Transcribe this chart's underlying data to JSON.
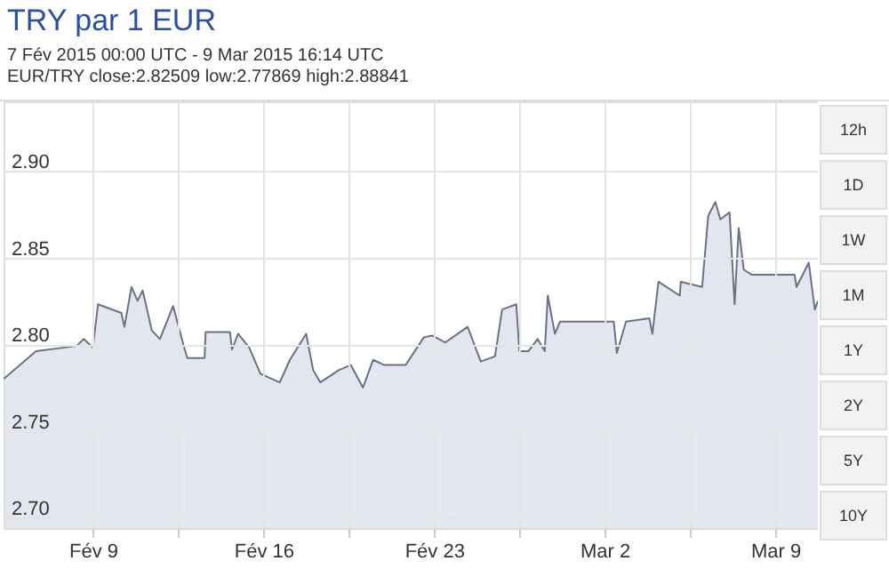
{
  "chart_data": {
    "type": "area",
    "title": "TRY par 1 EUR",
    "subtitle": "7 Fév 2015 00:00 UTC - 9 Mar 2015 16:14 UTC",
    "annotations": [
      "EUR/TRY close:2.82509 low:2.77869 high:2.88841",
      "12h",
      "1D",
      "1W",
      "1M",
      "1Y",
      "2Y",
      "5Y",
      "10Y"
    ],
    "x": [
      "2015-02-05T08:00",
      "2015-02-06T16:00",
      "2015-02-08T08:00",
      "2015-02-08T15:00",
      "2015-02-09T00:00",
      "2015-02-09T05:00",
      "2015-02-10T04:00",
      "2015-02-10T07:00",
      "2015-02-10T14:00",
      "2015-02-10T20:00",
      "2015-02-11T01:00",
      "2015-02-11T10:00",
      "2015-02-11T18:00",
      "2015-02-12T07:00",
      "2015-02-12T17:00",
      "2015-02-12T21:00",
      "2015-02-13T14:00",
      "2015-02-13T15:00",
      "2015-02-14T15:00",
      "2015-02-14T17:00",
      "2015-02-14T23:00",
      "2015-02-15T10:00",
      "2015-02-15T21:00",
      "2015-02-16T16:00",
      "2015-02-17T02:00",
      "2015-02-17T18:00",
      "2015-02-18T01:00",
      "2015-02-18T08:00",
      "2015-02-19T02:00",
      "2015-02-19T14:00",
      "2015-02-20T02:00",
      "2015-02-20T12:00",
      "2015-02-20T23:00",
      "2015-02-21T20:00",
      "2015-02-22T14:00",
      "2015-02-22T22:00",
      "2015-02-23T11:00",
      "2015-02-24T09:00",
      "2015-02-24T22:00",
      "2015-02-25T12:00",
      "2015-02-25T19:00",
      "2015-02-26T09:00",
      "2015-02-26T12:00",
      "2015-02-26T21:00",
      "2015-02-27T06:00",
      "2015-02-27T13:00",
      "2015-02-27T16:00",
      "2015-02-27T23:00",
      "2015-02-28T04:00",
      "2015-03-02T09:00",
      "2015-03-02T12:00",
      "2015-03-02T21:00",
      "2015-03-03T20:00",
      "2015-03-03T23:00",
      "2015-03-04T05:00",
      "2015-03-05T02:00",
      "2015-03-05T03:00",
      "2015-03-06T00:00",
      "2015-03-06T06:00",
      "2015-03-06T13:00",
      "2015-03-06T18:00",
      "2015-03-07T03:00",
      "2015-03-07T08:00",
      "2015-03-07T12:00",
      "2015-03-07T17:00",
      "2015-03-08T01:00",
      "2015-03-09T19:00",
      "2015-03-09T21:00",
      "2015-03-10T09:00",
      "2015-03-10T15:00",
      "2015-03-10T18:00"
    ],
    "series": [
      {
        "color": "#6b7186",
        "values": [
          2.78,
          2.796,
          2.799,
          2.803,
          2.798,
          2.823,
          2.818,
          2.81,
          2.833,
          2.825,
          2.831,
          2.808,
          2.803,
          2.822,
          2.8,
          2.792,
          2.792,
          2.807,
          2.807,
          2.797,
          2.806,
          2.798,
          2.783,
          2.778,
          2.791,
          2.806,
          2.785,
          2.778,
          2.785,
          2.788,
          2.775,
          2.791,
          2.788,
          2.788,
          2.804,
          2.805,
          2.801,
          2.81,
          2.79,
          2.793,
          2.82,
          2.823,
          2.796,
          2.796,
          2.803,
          2.796,
          2.828,
          2.806,
          2.813,
          2.813,
          2.795,
          2.813,
          2.815,
          2.806,
          2.836,
          2.828,
          2.836,
          2.833,
          2.874,
          2.882,
          2.872,
          2.876,
          2.823,
          2.867,
          2.843,
          2.84,
          2.84,
          2.833,
          2.847,
          2.82,
          2.825
        ]
      }
    ],
    "xlim": [
      "2015-02-05T08:00",
      "2015-03-10T18:00"
    ],
    "xticks": [
      {
        "value": "2015-02-09",
        "label": "Fév 9"
      },
      {
        "value": "2015-02-12T12:00",
        "label": null
      },
      {
        "value": "2015-02-16",
        "label": "Fév 16"
      },
      {
        "value": "2015-02-19T12:00",
        "label": null
      },
      {
        "value": "2015-02-23",
        "label": "Fév 23"
      },
      {
        "value": "2015-02-26T12:00",
        "label": null
      },
      {
        "value": "2015-03-02",
        "label": "Mar 2"
      },
      {
        "value": "2015-03-05T12:00",
        "label": null
      },
      {
        "value": "2015-03-09",
        "label": "Mar 9"
      }
    ],
    "ylim": [
      2.694,
      2.94
    ],
    "yticks": [
      {
        "value": 2.7,
        "label": "2.70"
      },
      {
        "value": 2.75,
        "label": "2.75"
      },
      {
        "value": 2.8,
        "label": "2.80"
      },
      {
        "value": 2.85,
        "label": "2.85"
      },
      {
        "value": 2.9,
        "label": "2.90"
      }
    ],
    "grid": true
  }
}
